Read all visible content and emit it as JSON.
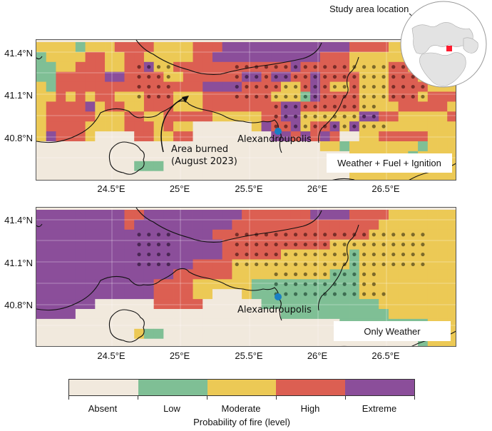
{
  "colors": {
    "absent": "#f1e9dd",
    "low": "#7fbf95",
    "moderate": "#ecc955",
    "high": "#dc5f52",
    "extreme": "#8b4e9a",
    "city_marker": "#1a7fc4",
    "study_marker": "#ff1a2e"
  },
  "levels": [
    "Absent",
    "Low",
    "Moderate",
    "High",
    "Extreme"
  ],
  "axes": {
    "y_ticks": [
      "41.4°N",
      "41.1°N",
      "40.8°N"
    ],
    "x_ticks": [
      "24.5°E",
      "25°E",
      "25.5°E",
      "26°E",
      "26.5°E"
    ]
  },
  "panels": [
    {
      "id": "top",
      "title": "Weather + Fuel + Ignition",
      "city": "Alexandroupolis",
      "annotation": {
        "line1": "Area burned",
        "line2": "(August 2023)"
      },
      "grid": [
        "2222122233332222333444444444444433332222222",
        "1222233223322222334444444444433322222222222",
        "1122333223342233333333333343333322223322222",
        "1133333443333223333334434433433332223332222",
        "2133333333333333344443333223432232223333222",
        "2232323322233322233333332221433332223332333",
        "2333342332233322233333333443333332222333332",
        "2333332223322333332222233442222224433222223",
        "2333322223332322000000243342334242222222222",
        "2433320000332233000000004434343002233333222",
        "0000000000000000000000000000022122222221222",
        "0000000000000000000000000000000022222212222",
        "0000000000111000000000000000000022221122222",
        "0000000000000000000000000000000022222222222"
      ],
      "dots": [
        {
          "row": 2,
          "cols": [
            10,
            11,
            12,
            13,
            20,
            21,
            22,
            23,
            24,
            25,
            26,
            27,
            28,
            29,
            30,
            31,
            32,
            33,
            34,
            35,
            36,
            37,
            38,
            39
          ]
        },
        {
          "row": 3,
          "cols": [
            10,
            11,
            12,
            13,
            20,
            21,
            22,
            23,
            24,
            25,
            26,
            27,
            28,
            29,
            30,
            31,
            32,
            33,
            34,
            35,
            36,
            37,
            38,
            39
          ]
        },
        {
          "row": 4,
          "cols": [
            10,
            11,
            12,
            13,
            20,
            21,
            22,
            23,
            24,
            25,
            26,
            27,
            28,
            29,
            30,
            31,
            32,
            33,
            34,
            35,
            36,
            37,
            38,
            39
          ]
        },
        {
          "row": 5,
          "cols": [
            10,
            11,
            12,
            13,
            20,
            21,
            22,
            23,
            24,
            25,
            26,
            27,
            28,
            29,
            30,
            31,
            32,
            33,
            34,
            35,
            36,
            37,
            38,
            39
          ]
        },
        {
          "row": 6,
          "cols": [
            24,
            25,
            26,
            27,
            28,
            29,
            30,
            31,
            32,
            33,
            34
          ]
        },
        {
          "row": 7,
          "cols": [
            24,
            25,
            26,
            27,
            28,
            29,
            30,
            31,
            32,
            33,
            34
          ]
        },
        {
          "row": 8,
          "cols": [
            24,
            25,
            26,
            27,
            28,
            29,
            30,
            31,
            32,
            33,
            34,
            35
          ]
        }
      ]
    },
    {
      "id": "bottom",
      "title": "Only Weather",
      "city": "Alexandroupolis",
      "grid": [
        "4444444443344444444443333333444433332222222",
        "4444444443444444444433333333333333322222222",
        "4444444444444444443333333333333333222222222",
        "4444444444444444444333333333332222222222222",
        "4444444444444444444333333222222212222222222",
        "4444444444444444333322222222222212222222222",
        "4444444444444433333322222222221112222222222",
        "4444444444443333222222111111111112222222222",
        "4444444444443333220002111111111112222222222",
        "4444440000003333300000011111111111122222222",
        "4444000000000000000000000111111111112222222",
        "0000000000000000000000000000000111111111222",
        "0000000000211000000000000000000011112222222",
        "0000000000000000000000000000000000000001222"
      ],
      "dots": [
        {
          "row": 2,
          "cols": [
            10,
            11,
            12,
            13,
            20,
            21,
            22,
            23,
            24,
            25,
            26,
            27,
            28,
            29,
            30,
            31,
            32,
            33,
            34,
            35,
            36,
            37,
            38,
            39
          ]
        },
        {
          "row": 3,
          "cols": [
            10,
            11,
            12,
            13,
            20,
            21,
            22,
            23,
            24,
            25,
            26,
            27,
            28,
            29,
            30,
            31,
            32,
            33,
            34,
            35,
            36,
            37,
            38,
            39
          ]
        },
        {
          "row": 4,
          "cols": [
            10,
            11,
            12,
            13,
            20,
            21,
            22,
            23,
            24,
            25,
            26,
            27,
            28,
            29,
            30,
            31,
            32,
            33,
            34,
            35,
            36,
            37,
            38,
            39
          ]
        },
        {
          "row": 5,
          "cols": [
            10,
            11,
            12,
            13,
            20,
            21,
            22,
            23,
            24,
            25,
            26,
            27,
            28,
            29,
            30,
            31,
            32,
            33,
            34,
            35,
            36,
            37,
            38,
            39
          ]
        },
        {
          "row": 6,
          "cols": [
            24,
            25,
            26,
            27,
            28,
            29,
            30,
            31,
            32,
            33,
            34
          ]
        },
        {
          "row": 7,
          "cols": [
            24,
            25,
            26,
            27,
            28,
            29,
            30,
            31,
            32,
            33,
            34
          ]
        },
        {
          "row": 8,
          "cols": [
            24,
            25,
            26,
            27,
            28,
            29,
            30,
            31,
            32,
            33,
            34,
            35
          ]
        }
      ]
    }
  ],
  "inset": {
    "label": "Study area location"
  },
  "colorbar": {
    "labels": [
      "Absent",
      "Low",
      "Moderate",
      "High",
      "Extreme"
    ],
    "title": "Probability of fire (level)"
  }
}
